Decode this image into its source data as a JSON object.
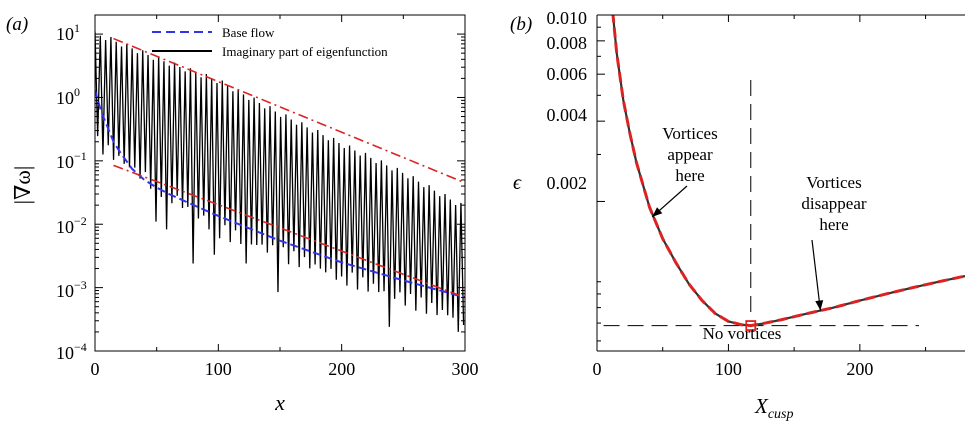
{
  "chart_data": [
    {
      "panel_label": "(a)",
      "type": "line",
      "xlabel": "x",
      "ylabel": "|∇ω|",
      "xlim": [
        0,
        300
      ],
      "ylim": [
        0.0001,
        20
      ],
      "yscale": "log",
      "xticks": [
        "0",
        "100",
        "200",
        "300"
      ],
      "yticks": [
        {
          "base": "10",
          "exp": "1"
        },
        {
          "base": "10",
          "exp": "0"
        },
        {
          "base": "10",
          "exp": "−1"
        },
        {
          "base": "10",
          "exp": "−2"
        },
        {
          "base": "10",
          "exp": "−3"
        },
        {
          "base": "10",
          "exp": "−4"
        }
      ],
      "legend_position": "top",
      "series": [
        {
          "name": "Base flow",
          "style": "dashed",
          "color": "#3333ee",
          "x": [
            0,
            5,
            10,
            15,
            20,
            30,
            40,
            50,
            60,
            80,
            100,
            150,
            200,
            250,
            300
          ],
          "y": [
            1.3,
            0.6,
            0.35,
            0.2,
            0.14,
            0.075,
            0.05,
            0.038,
            0.03,
            0.02,
            0.0135,
            0.0055,
            0.0025,
            0.0013,
            0.0007
          ]
        },
        {
          "name": "Imaginary part of eigenfunction",
          "style": "solid",
          "color": "#000000",
          "oscillation_period": 4.3,
          "envelope_upper": {
            "x": [
              0,
              10,
              50,
              100,
              150,
              200,
              250,
              300
            ],
            "y": [
              11,
              9.5,
              4.5,
              2.0,
              0.6,
              0.2,
              0.07,
              0.02
            ]
          },
          "typical_lower": {
            "x": [
              0,
              100,
              200,
              300
            ],
            "y": [
              0.2,
              0.008,
              0.0015,
              0.0003
            ]
          },
          "deep_minima": [
            {
              "x": 48,
              "y": 0.011
            },
            {
              "x": 60,
              "y": 0.0083
            },
            {
              "x": 80,
              "y": 0.0024
            },
            {
              "x": 95,
              "y": 0.0033
            },
            {
              "x": 121,
              "y": 0.0024
            },
            {
              "x": 150,
              "y": 0.00085
            },
            {
              "x": 202,
              "y": 0.0015
            },
            {
              "x": 239,
              "y": 0.00024
            },
            {
              "x": 295,
              "y": 0.0002
            }
          ]
        },
        {
          "style": "dash-dot",
          "color": "#dd2222",
          "x": [
            15,
            300
          ],
          "y": [
            8.5,
            0.045
          ]
        },
        {
          "style": "dash-dot",
          "color": "#dd2222",
          "x": [
            15,
            300
          ],
          "y": [
            0.085,
            0.0007
          ]
        }
      ]
    },
    {
      "panel_label": "(b)",
      "type": "line",
      "xlabel": "X",
      "xlabel_sub": "cusp",
      "ylabel": "ϵ",
      "xlim": [
        0,
        280
      ],
      "ylim": [
        0.00055,
        0.01
      ],
      "yscale": "log",
      "xticks": [
        "0",
        "100",
        "200"
      ],
      "yticks": [
        {
          "value": 0.01,
          "label": "0.010"
        },
        {
          "value": 0.008,
          "label": "0.008"
        },
        {
          "value": 0.006,
          "label": "0.006"
        },
        {
          "value": 0.004,
          "label": "0.004"
        },
        {
          "value": 0.002,
          "label": "0.002"
        }
      ],
      "series": [
        {
          "style": "solid",
          "color": "#333333",
          "x": [
            12,
            15,
            20,
            25,
            30,
            40,
            50,
            60,
            70,
            80,
            90,
            100,
            110,
            117,
            125,
            140,
            160,
            180,
            200,
            220,
            240,
            260,
            280
          ],
          "y": [
            0.0102,
            0.0072,
            0.0048,
            0.0036,
            0.0028,
            0.0019,
            0.00145,
            0.00118,
            0.00098,
            0.00085,
            0.00076,
            0.00071,
            0.00069,
            0.000685,
            0.000695,
            0.00072,
            0.00076,
            0.0008,
            0.00085,
            0.0009,
            0.00095,
            0.001,
            0.00105
          ]
        },
        {
          "style": "dashed",
          "color": "#dd2222",
          "x": [
            12,
            15,
            20,
            25,
            30,
            40,
            50,
            60,
            70,
            80,
            90,
            100,
            110,
            117,
            125,
            140,
            160,
            180,
            200,
            220,
            240,
            260,
            280
          ],
          "y": [
            0.0102,
            0.0072,
            0.0048,
            0.0036,
            0.0028,
            0.0019,
            0.00145,
            0.00118,
            0.00098,
            0.00085,
            0.00076,
            0.00071,
            0.00069,
            0.000685,
            0.000695,
            0.00072,
            0.00076,
            0.0008,
            0.00085,
            0.0009,
            0.00095,
            0.001,
            0.00105
          ]
        }
      ],
      "reference_lines": {
        "vertical_x": 117,
        "horizontal_y": 0.000685,
        "horizontal_x_range": [
          5,
          245
        ]
      },
      "marker": {
        "x": 117,
        "y": 0.000685,
        "shape": "square",
        "color": "#dd2222"
      },
      "annotations": [
        {
          "lines": [
            "Vortices",
            "appear",
            "here"
          ],
          "arrow_to": {
            "x": 42,
            "y": 0.00175
          }
        },
        {
          "lines": [
            "Vortices",
            "disappear",
            "here"
          ],
          "arrow_to": {
            "x": 170,
            "y": 0.00078
          }
        },
        {
          "lines": [
            "No vortices"
          ]
        }
      ]
    }
  ]
}
